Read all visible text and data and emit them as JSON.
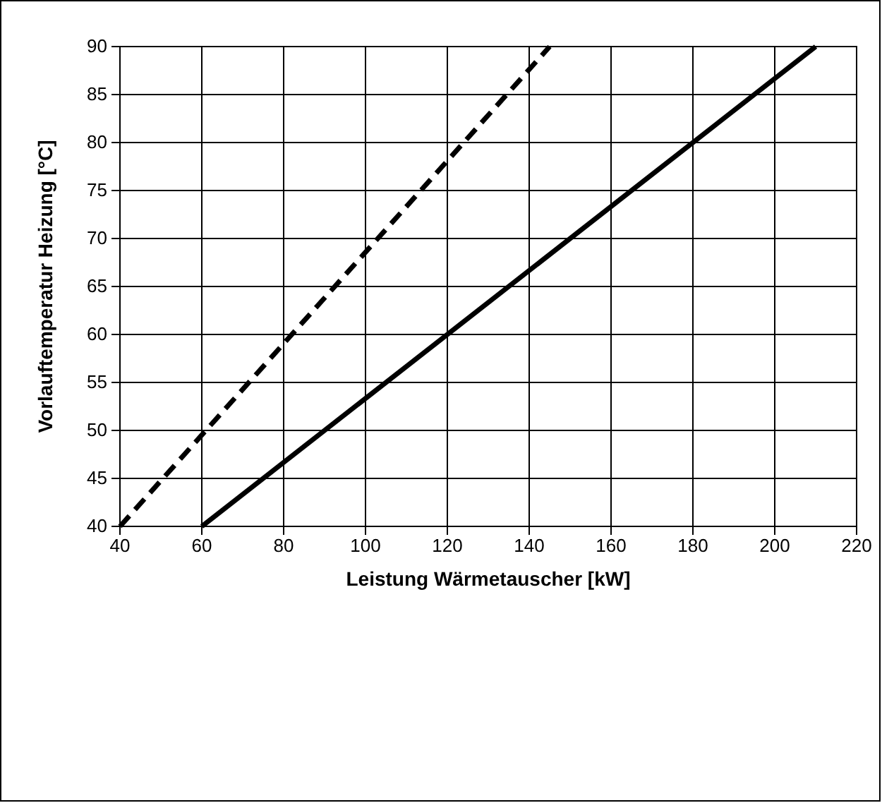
{
  "chart_data": {
    "type": "line",
    "xlabel": "Leistung Wärmetauscher [kW]",
    "ylabel": "Vorlauftemperatur Heizung [°C]",
    "xlim": [
      40,
      220
    ],
    "xticks": [
      40,
      60,
      80,
      100,
      120,
      140,
      160,
      180,
      200,
      220
    ],
    "ylim": [
      40,
      90
    ],
    "yticks": [
      40,
      45,
      50,
      55,
      60,
      65,
      70,
      75,
      80,
      85,
      90
    ],
    "grid": true,
    "marker": "none",
    "series": [
      {
        "color": "#000000",
        "line_style": "dashed",
        "x": [
          40,
          145
        ],
        "values": [
          40,
          90
        ]
      },
      {
        "color": "#000000",
        "line_style": "solid",
        "x": [
          60,
          210
        ],
        "values": [
          40,
          90
        ]
      }
    ]
  }
}
